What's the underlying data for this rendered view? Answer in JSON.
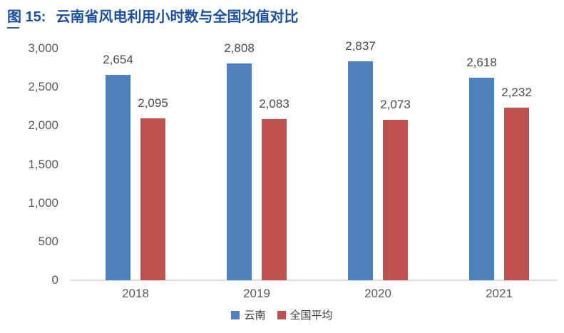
{
  "figure": {
    "label": "图 15:",
    "title": "云南省风电利用小时数与全国均值对比",
    "title_color": "#1d4fa0"
  },
  "chart_data": {
    "type": "bar",
    "title": "云南省风电利用小时数与全国均值对比",
    "categories": [
      "2018",
      "2019",
      "2020",
      "2021"
    ],
    "series": [
      {
        "name": "云南",
        "key": "yunnan",
        "color": "#4e81bc",
        "values": [
          2654,
          2808,
          2837,
          2618
        ],
        "labels": [
          "2,654",
          "2,808",
          "2,837",
          "2,618"
        ]
      },
      {
        "name": "全国平均",
        "key": "national-avg",
        "color": "#c0504d",
        "values": [
          2095,
          2083,
          2073,
          2232
        ],
        "labels": [
          "2,095",
          "2,083",
          "2,073",
          "2,232"
        ]
      }
    ],
    "xlabel": "",
    "ylabel": "",
    "ylim": [
      0,
      3000
    ],
    "y_ticks": [
      {
        "value": 0,
        "label": "0"
      },
      {
        "value": 500,
        "label": "500"
      },
      {
        "value": 1000,
        "label": "1,000"
      },
      {
        "value": 1500,
        "label": "1,500"
      },
      {
        "value": 2000,
        "label": "2,000"
      },
      {
        "value": 2500,
        "label": "2,500"
      },
      {
        "value": 3000,
        "label": "3,000"
      }
    ],
    "grid": false,
    "legend_position": "bottom",
    "axis_line_color": "#dcdcdc",
    "tick_label_color": "#595959",
    "value_label_color": "#4a4a4a"
  }
}
